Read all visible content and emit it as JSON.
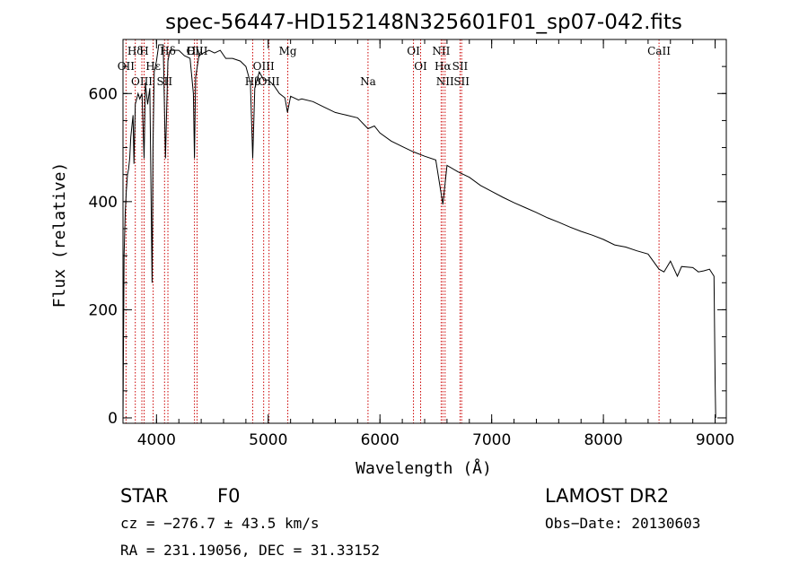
{
  "chart_data": {
    "type": "line",
    "title": "spec-56447-HD152148N325601F01_sp07-042.fits",
    "xlabel": "Wavelength (Å)",
    "ylabel": "Flux (relative)",
    "xlim": [
      3700,
      9100
    ],
    "ylim": [
      -10,
      700
    ],
    "xticks": [
      4000,
      5000,
      6000,
      7000,
      8000,
      9000
    ],
    "yticks": [
      0,
      200,
      400,
      600
    ],
    "grid": false,
    "series": [
      {
        "x": [
          3700,
          3710,
          3720,
          3730,
          3740,
          3750,
          3760,
          3770,
          3790,
          3798,
          3810,
          3835,
          3850,
          3870,
          3889,
          3900,
          3920,
          3940,
          3960,
          3968,
          3980,
          4000,
          4020,
          4060,
          4080,
          4102,
          4120,
          4160,
          4200,
          4250,
          4300,
          4330,
          4340,
          4350,
          4380,
          4420,
          4470,
          4520,
          4570,
          4620,
          4680,
          4750,
          4800,
          4840,
          4861,
          4880,
          4920,
          4960,
          5000,
          5050,
          5100,
          5150,
          5172,
          5200,
          5270,
          5300,
          5400,
          5500,
          5600,
          5700,
          5800,
          5893,
          5950,
          6000,
          6100,
          6200,
          6300,
          6400,
          6500,
          6563,
          6600,
          6700,
          6800,
          6900,
          7000,
          7100,
          7200,
          7300,
          7400,
          7500,
          7600,
          7700,
          7800,
          7900,
          8000,
          8100,
          8200,
          8300,
          8400,
          8498,
          8542,
          8600,
          8662,
          8700,
          8800,
          8850,
          8900,
          8950,
          8990,
          9000,
          9005
        ],
        "y": [
          -5,
          300,
          380,
          420,
          450,
          460,
          480,
          520,
          560,
          470,
          580,
          600,
          590,
          600,
          480,
          620,
          580,
          610,
          250,
          500,
          640,
          660,
          690,
          690,
          480,
          660,
          680,
          680,
          680,
          670,
          665,
          600,
          480,
          630,
          670,
          675,
          680,
          675,
          680,
          665,
          665,
          660,
          650,
          620,
          480,
          610,
          640,
          625,
          625,
          615,
          600,
          592,
          565,
          595,
          588,
          590,
          585,
          575,
          565,
          560,
          555,
          535,
          540,
          527,
          512,
          502,
          492,
          484,
          477,
          395,
          467,
          455,
          445,
          430,
          419,
          408,
          398,
          389,
          380,
          370,
          362,
          353,
          345,
          338,
          330,
          320,
          316,
          309,
          303,
          275,
          270,
          290,
          262,
          280,
          278,
          270,
          272,
          275,
          262,
          60,
          0
        ]
      }
    ],
    "lines": [
      {
        "label": "Hδ",
        "x": 4102,
        "row": 1
      },
      {
        "label": "OII",
        "x": 3727,
        "row": 2
      },
      {
        "label": "Hε",
        "x": 3970,
        "row": 2
      },
      {
        "label": "Hγ",
        "x": 4340,
        "row": 1
      },
      {
        "label": "OIII",
        "x": 4363,
        "row": 1
      },
      {
        "label": "Hβ",
        "x": 4861,
        "row": 3
      },
      {
        "label": "OIII",
        "x": 4959,
        "row": 2
      },
      {
        "label": "OIII",
        "x": 5007,
        "row": 3
      },
      {
        "label": "Mg",
        "x": 5175,
        "row": 1
      },
      {
        "label": "Na",
        "x": 5893,
        "row": 3
      },
      {
        "label": "OI",
        "x": 6300,
        "row": 1
      },
      {
        "label": "OI",
        "x": 6364,
        "row": 2
      },
      {
        "label": "NII",
        "x": 6548,
        "row": 1
      },
      {
        "label": "Hα",
        "x": 6563,
        "row": 2
      },
      {
        "label": "NII",
        "x": 6583,
        "row": 3
      },
      {
        "label": "SII",
        "x": 6717,
        "row": 2
      },
      {
        "label": "SII",
        "x": 6731,
        "row": 3
      },
      {
        "label": "CaII",
        "x": 8498,
        "row": 1
      },
      {
        "label": "OIII",
        "x": 3869,
        "row": 3
      },
      {
        "label": "SII",
        "x": 4072,
        "row": 3
      },
      {
        "label": "H",
        "x": 3889,
        "row": 1
      },
      {
        "label": "Hδ",
        "x": 3810,
        "row": 1
      }
    ],
    "line_color": "#cc0000",
    "spectrum_color": "#000000"
  },
  "info": {
    "class": "STAR",
    "subclass": "F0",
    "survey": "LAMOST DR2",
    "cz": "cz = −276.7 ± 43.5 km/s",
    "obsdate": "Obs−Date: 20130603",
    "radec": "RA = 231.19056, DEC =  31.33152"
  }
}
